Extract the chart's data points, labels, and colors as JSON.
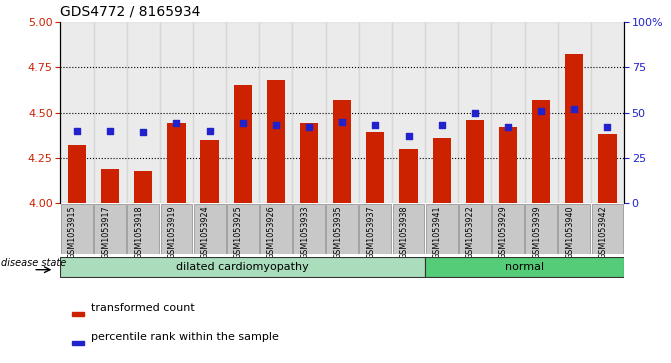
{
  "title": "GDS4772 / 8165934",
  "samples": [
    "GSM1053915",
    "GSM1053917",
    "GSM1053918",
    "GSM1053919",
    "GSM1053924",
    "GSM1053925",
    "GSM1053926",
    "GSM1053933",
    "GSM1053935",
    "GSM1053937",
    "GSM1053938",
    "GSM1053941",
    "GSM1053922",
    "GSM1053929",
    "GSM1053939",
    "GSM1053940",
    "GSM1053942"
  ],
  "transformed_count": [
    4.32,
    4.19,
    4.18,
    4.44,
    4.35,
    4.65,
    4.68,
    4.44,
    4.57,
    4.39,
    4.3,
    4.36,
    4.46,
    4.42,
    4.57,
    4.82,
    4.38
  ],
  "percentile_rank": [
    40,
    40,
    39,
    44,
    40,
    44,
    43,
    42,
    45,
    43,
    37,
    43,
    50,
    42,
    51,
    52,
    42
  ],
  "disease_state": [
    "dilated cardiomyopathy",
    "dilated cardiomyopathy",
    "dilated cardiomyopathy",
    "dilated cardiomyopathy",
    "dilated cardiomyopathy",
    "dilated cardiomyopathy",
    "dilated cardiomyopathy",
    "dilated cardiomyopathy",
    "dilated cardiomyopathy",
    "dilated cardiomyopathy",
    "dilated cardiomyopathy",
    "normal",
    "normal",
    "normal",
    "normal",
    "normal",
    "normal"
  ],
  "ylim_left": [
    4.0,
    5.0
  ],
  "ylim_right": [
    0,
    100
  ],
  "yticks_left": [
    4.0,
    4.25,
    4.5,
    4.75,
    5.0
  ],
  "yticks_right": [
    0,
    25,
    50,
    75,
    100
  ],
  "bar_color": "#CC2200",
  "dot_color": "#2222CC",
  "dc_bg_color": "#AADDBB",
  "normal_bg_color": "#55CC77",
  "label_bg_color": "#C8C8C8",
  "grid_color": "#000000",
  "disease_label_dc": "dilated cardiomyopathy",
  "disease_label_normal": "normal",
  "legend_tc": "transformed count",
  "legend_pr": "percentile rank within the sample",
  "disease_state_label": "disease state",
  "bar_width": 0.55,
  "figsize": [
    6.71,
    3.63
  ],
  "dpi": 100
}
